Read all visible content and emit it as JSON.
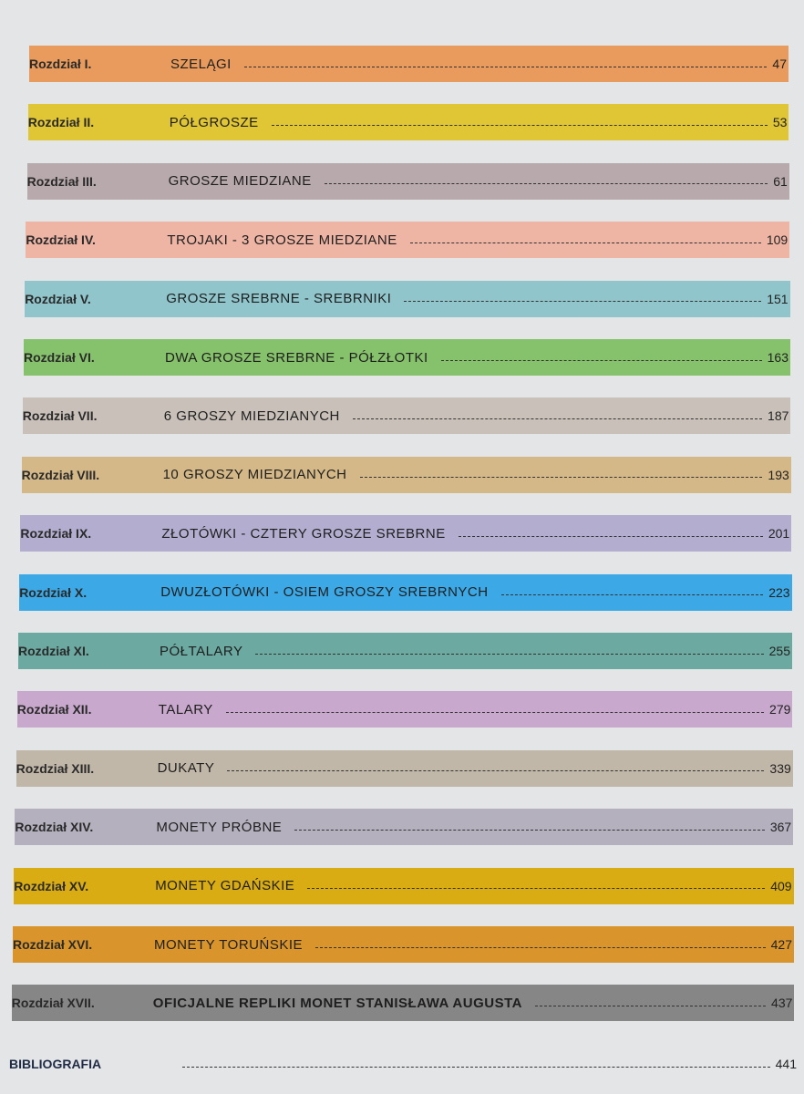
{
  "toc": [
    {
      "chapter": "Rozdział I.",
      "title": "SZELĄGI",
      "page": "47",
      "color": "#e89b5c"
    },
    {
      "chapter": "Rozdział II.",
      "title": "PÓŁGROSZE",
      "page": "53",
      "color": "#e0c534"
    },
    {
      "chapter": "Rozdział III.",
      "title": "GROSZE MIEDZIANE",
      "page": "61",
      "color": "#b8a9ac"
    },
    {
      "chapter": "Rozdział IV.",
      "title": "TROJAKI - 3 GROSZE MIEDZIANE",
      "page": "109",
      "color": "#eeb4a4"
    },
    {
      "chapter": "Rozdział V.",
      "title": "GROSZE SREBRNE - SREBRNIKI",
      "page": "151",
      "color": "#8fc5cb"
    },
    {
      "chapter": "Rozdział VI.",
      "title": "DWA GROSZE SREBRNE - PÓŁZŁOTKI",
      "page": "163",
      "color": "#86c26b"
    },
    {
      "chapter": "Rozdział VII.",
      "title": "6 GROSZY MIEDZIANYCH",
      "page": "187",
      "color": "#c9c1b9"
    },
    {
      "chapter": "Rozdział VIII.",
      "title": "10 GROSZY MIEDZIANYCH",
      "page": "193",
      "color": "#d5b888"
    },
    {
      "chapter": "Rozdział IX.",
      "title": "ZŁOTÓWKI - CZTERY GROSZE SREBRNE",
      "page": "201",
      "color": "#b3add0"
    },
    {
      "chapter": "Rozdział X.",
      "title": "DWUZŁOTÓWKI - OSIEM GROSZY SREBRNYCH",
      "page": "223",
      "color": "#3ca9e6"
    },
    {
      "chapter": "Rozdział XI.",
      "title": "PÓŁTALARY",
      "page": "255",
      "color": "#6ba9a1"
    },
    {
      "chapter": "Rozdział XII.",
      "title": "TALARY",
      "page": "279",
      "color": "#c8a8cc"
    },
    {
      "chapter": "Rozdział XIII.",
      "title": "DUKATY",
      "page": "339",
      "color": "#c1b7a8"
    },
    {
      "chapter": "Rozdział XIV.",
      "title": "MONETY PRÓBNE",
      "page": "367",
      "color": "#b5b0be"
    },
    {
      "chapter": "Rozdział XV.",
      "title": "MONETY GDAŃSKIE",
      "page": "409",
      "color": "#d8ac12"
    },
    {
      "chapter": "Rozdział XVI.",
      "title": "MONETY TORUŃSKIE",
      "page": "427",
      "color": "#d9942c"
    },
    {
      "chapter": "Rozdział XVII.",
      "title": "OFICJALNE REPLIKI MONET STANISŁAWA AUGUSTA",
      "page": "437",
      "color": "#868686"
    }
  ],
  "bibliography": {
    "title": "BIBLIOGRAFIA",
    "page": "441"
  }
}
